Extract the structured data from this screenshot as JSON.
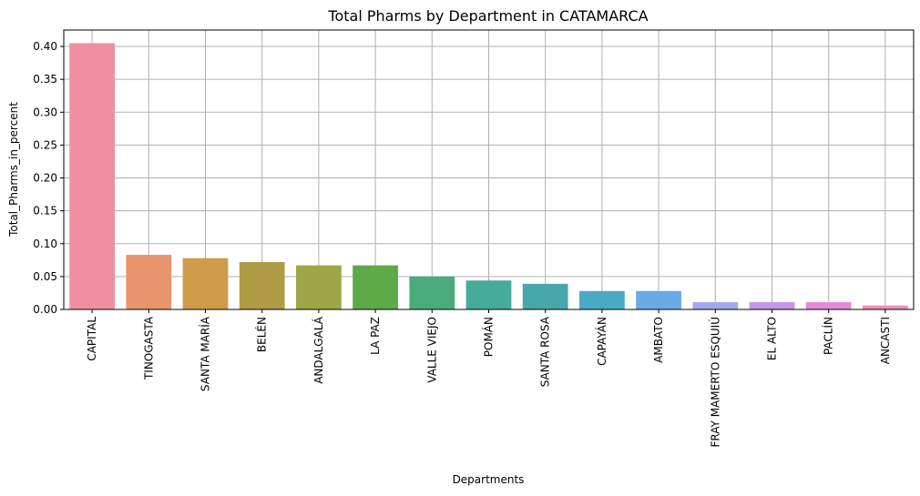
{
  "chart_data": {
    "type": "bar",
    "title": "Total Pharms by Department in CATAMARCA",
    "xlabel": "Departments",
    "ylabel": "Total_Pharms_in_percent",
    "categories": [
      "CAPITAL",
      "TINOGASTA",
      "SANTA MARÍA",
      "BELÉN",
      "ANDALGALÁ",
      "LA PAZ",
      "VALLE VIEJO",
      "POMÁN",
      "SANTA ROSA",
      "CAPAYÁN",
      "AMBATO",
      "FRAY MAMERTO ESQUIÚ",
      "EL ALTO",
      "PACLÍN",
      "ANCASTI"
    ],
    "values": [
      0.405,
      0.083,
      0.078,
      0.072,
      0.067,
      0.067,
      0.05,
      0.044,
      0.039,
      0.028,
      0.028,
      0.011,
      0.011,
      0.011,
      0.006
    ],
    "colors": [
      "#f08fa0",
      "#e8956d",
      "#cf9c4a",
      "#b09c45",
      "#9ea646",
      "#5ea948",
      "#4aac7c",
      "#47ab9a",
      "#48a8a9",
      "#4aaac1",
      "#6aaae6",
      "#a4a6ee",
      "#c596eb",
      "#e48ad9",
      "#ee8fc0"
    ],
    "yticks": [
      "0.00",
      "0.05",
      "0.10",
      "0.15",
      "0.20",
      "0.25",
      "0.30",
      "0.35",
      "0.40"
    ],
    "ylim": [
      0,
      0.425
    ],
    "grid": true
  }
}
